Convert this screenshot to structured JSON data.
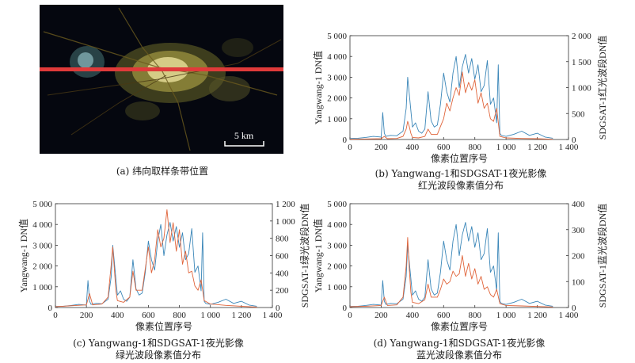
{
  "panel_a": {
    "caption": "(a) 纬向取样条带位置",
    "scale_label": "5 km",
    "colors": {
      "background": "#05070f",
      "band": "#e03a3a"
    }
  },
  "captions": {
    "b": [
      "(b) Yangwang-1和SDGSAT-1夜光影像",
      "红光波段像素值分布"
    ],
    "c": [
      "(c) Yangwang-1和SDGSAT-1夜光影像",
      "绿光波段像素值分布"
    ],
    "d": [
      "(d) Yangwang-1和SDGSAT-1夜光影像",
      "蓝光波段像素值分布"
    ]
  },
  "colors": {
    "yangwang": "#3a86b8",
    "sdgsat": "#e0643a"
  },
  "chart_data": [
    {
      "id": "b",
      "type": "line",
      "xlabel": "像素位置序号",
      "ylabel_left": "Yangwang-1 DN值",
      "ylabel_right": "SDGSAT-1红光波段DN值",
      "xlim": [
        0,
        1400
      ],
      "xticks": [
        "0",
        "200",
        "400",
        "600",
        "800",
        "1 000",
        "1 200",
        "1 400"
      ],
      "ylim_left": [
        0,
        5000
      ],
      "yticks_left": [
        "0",
        "1 000",
        "2 000",
        "3 000",
        "4 000",
        "5 000"
      ],
      "ylim_right": [
        0,
        2000
      ],
      "yticks_right": [
        "0",
        "500",
        "1 000",
        "1 500",
        "2 000"
      ],
      "series": [
        {
          "name": "Yangwang-1",
          "axis": "left",
          "x": [
            0,
            50,
            100,
            150,
            200,
            210,
            220,
            230,
            260,
            300,
            340,
            360,
            370,
            380,
            390,
            400,
            420,
            440,
            460,
            480,
            500,
            520,
            540,
            560,
            580,
            600,
            620,
            640,
            660,
            680,
            700,
            720,
            740,
            760,
            780,
            800,
            820,
            840,
            860,
            880,
            900,
            920,
            940,
            950,
            960,
            970,
            1000,
            1050,
            1100,
            1150,
            1200,
            1250,
            1300
          ],
          "y": [
            50,
            60,
            100,
            150,
            120,
            1300,
            300,
            150,
            200,
            180,
            400,
            1500,
            3000,
            2200,
            1400,
            600,
            800,
            400,
            300,
            500,
            2300,
            900,
            600,
            700,
            1700,
            3200,
            2300,
            1800,
            3200,
            4000,
            2500,
            3500,
            4100,
            3200,
            3900,
            2900,
            3600,
            2300,
            2600,
            3800,
            1700,
            2000,
            800,
            3600,
            300,
            200,
            150,
            250,
            400,
            200,
            300,
            120,
            60
          ]
        },
        {
          "name": "SDGSAT-1",
          "axis": "right",
          "x": [
            0,
            100,
            200,
            220,
            240,
            300,
            340,
            360,
            370,
            380,
            390,
            400,
            440,
            480,
            500,
            520,
            560,
            580,
            600,
            620,
            640,
            660,
            680,
            700,
            720,
            740,
            760,
            780,
            800,
            820,
            840,
            860,
            880,
            900,
            920,
            940,
            960,
            1000,
            1100,
            1200,
            1300
          ],
          "y": [
            5,
            10,
            15,
            60,
            15,
            20,
            60,
            200,
            350,
            250,
            120,
            40,
            30,
            60,
            200,
            100,
            100,
            250,
            400,
            700,
            550,
            800,
            1000,
            850,
            1300,
            900,
            1100,
            950,
            1150,
            700,
            900,
            600,
            700,
            400,
            350,
            600,
            60,
            30,
            20,
            15,
            5
          ]
        }
      ]
    },
    {
      "id": "c",
      "type": "line",
      "xlabel": "像素位置序号",
      "ylabel_left": "Yangwang-1 DN值",
      "ylabel_right": "SDGSAT-1绿光波段DN值",
      "xlim": [
        0,
        1400
      ],
      "xticks": [
        "0",
        "200",
        "400",
        "600",
        "800",
        "1 000",
        "1 200",
        "1 400"
      ],
      "ylim_left": [
        0,
        5000
      ],
      "yticks_left": [
        "0",
        "1 000",
        "2 000",
        "3 000",
        "4 000",
        "5 000"
      ],
      "ylim_right": [
        0,
        1200
      ],
      "yticks_right": [
        "0",
        "200",
        "400",
        "600",
        "800",
        "1 000",
        "1 200"
      ],
      "series": [
        {
          "name": "Yangwang-1",
          "axis": "left",
          "x": [
            0,
            50,
            100,
            150,
            200,
            210,
            220,
            230,
            260,
            300,
            340,
            360,
            370,
            380,
            390,
            400,
            420,
            440,
            460,
            480,
            500,
            520,
            540,
            560,
            580,
            600,
            620,
            640,
            660,
            680,
            700,
            720,
            740,
            760,
            780,
            800,
            820,
            840,
            860,
            880,
            900,
            920,
            940,
            950,
            960,
            970,
            1000,
            1050,
            1100,
            1150,
            1200,
            1250,
            1300
          ],
          "y": [
            50,
            60,
            100,
            150,
            120,
            1300,
            300,
            150,
            200,
            180,
            400,
            1500,
            3000,
            2200,
            1400,
            600,
            800,
            400,
            300,
            500,
            2300,
            900,
            600,
            700,
            1700,
            3200,
            2300,
            1800,
            3200,
            4000,
            2500,
            3500,
            4100,
            3200,
            3900,
            2900,
            3600,
            2300,
            2600,
            3800,
            1700,
            2000,
            800,
            3600,
            300,
            200,
            150,
            250,
            400,
            200,
            300,
            120,
            60
          ]
        },
        {
          "name": "SDGSAT-1",
          "axis": "right",
          "x": [
            0,
            100,
            200,
            220,
            240,
            300,
            340,
            360,
            370,
            380,
            390,
            400,
            440,
            480,
            500,
            520,
            560,
            580,
            600,
            620,
            640,
            660,
            680,
            700,
            720,
            740,
            760,
            780,
            800,
            820,
            840,
            860,
            880,
            900,
            920,
            940,
            960,
            1000,
            1100,
            1200,
            1300
          ],
          "y": [
            10,
            20,
            30,
            160,
            30,
            40,
            120,
            500,
            700,
            450,
            200,
            80,
            60,
            120,
            420,
            200,
            200,
            450,
            700,
            400,
            550,
            900,
            700,
            800,
            1130,
            750,
            980,
            650,
            900,
            500,
            650,
            400,
            420,
            250,
            200,
            320,
            80,
            40,
            25,
            15,
            5
          ]
        }
      ]
    },
    {
      "id": "d",
      "type": "line",
      "xlabel": "像素位置序号",
      "ylabel_left": "Yangwang-1 DN值",
      "ylabel_right": "SDGSAT-1蓝光波段DN值",
      "xlim": [
        0,
        1400
      ],
      "xticks": [
        "0",
        "200",
        "400",
        "600",
        "800",
        "1 000",
        "1 200",
        "1 400"
      ],
      "ylim_left": [
        0,
        5000
      ],
      "yticks_left": [
        "0",
        "1 000",
        "2 000",
        "3 000",
        "4 000",
        "5 000"
      ],
      "ylim_right": [
        0,
        400
      ],
      "yticks_right": [
        "0",
        "100",
        "200",
        "300",
        "400"
      ],
      "series": [
        {
          "name": "Yangwang-1",
          "axis": "left",
          "x": [
            0,
            50,
            100,
            150,
            200,
            210,
            220,
            230,
            260,
            300,
            340,
            360,
            370,
            380,
            390,
            400,
            420,
            440,
            460,
            480,
            500,
            520,
            540,
            560,
            580,
            600,
            620,
            640,
            660,
            680,
            700,
            720,
            740,
            760,
            780,
            800,
            820,
            840,
            860,
            880,
            900,
            920,
            940,
            950,
            960,
            970,
            1000,
            1050,
            1100,
            1150,
            1200,
            1250,
            1300
          ],
          "y": [
            50,
            60,
            100,
            150,
            120,
            1300,
            300,
            150,
            200,
            180,
            400,
            1500,
            3000,
            2200,
            1400,
            600,
            800,
            400,
            300,
            500,
            2300,
            900,
            600,
            700,
            1700,
            3200,
            2300,
            1800,
            3200,
            4000,
            2500,
            3500,
            4100,
            3200,
            3900,
            2900,
            3600,
            2300,
            2600,
            3800,
            1700,
            2000,
            800,
            3600,
            300,
            200,
            150,
            250,
            400,
            200,
            300,
            120,
            60
          ]
        },
        {
          "name": "SDGSAT-1",
          "axis": "right",
          "x": [
            0,
            100,
            200,
            220,
            240,
            300,
            340,
            360,
            370,
            380,
            390,
            400,
            440,
            480,
            500,
            520,
            560,
            580,
            600,
            620,
            640,
            660,
            680,
            700,
            720,
            740,
            760,
            780,
            800,
            820,
            840,
            860,
            880,
            900,
            920,
            940,
            960,
            1000,
            1100,
            1200,
            1300
          ],
          "y": [
            3,
            5,
            8,
            40,
            8,
            10,
            40,
            160,
            270,
            150,
            60,
            20,
            15,
            30,
            90,
            40,
            40,
            70,
            110,
            90,
            100,
            140,
            120,
            130,
            200,
            120,
            170,
            110,
            150,
            90,
            120,
            70,
            80,
            50,
            40,
            70,
            15,
            8,
            6,
            4,
            2
          ]
        }
      ]
    }
  ]
}
